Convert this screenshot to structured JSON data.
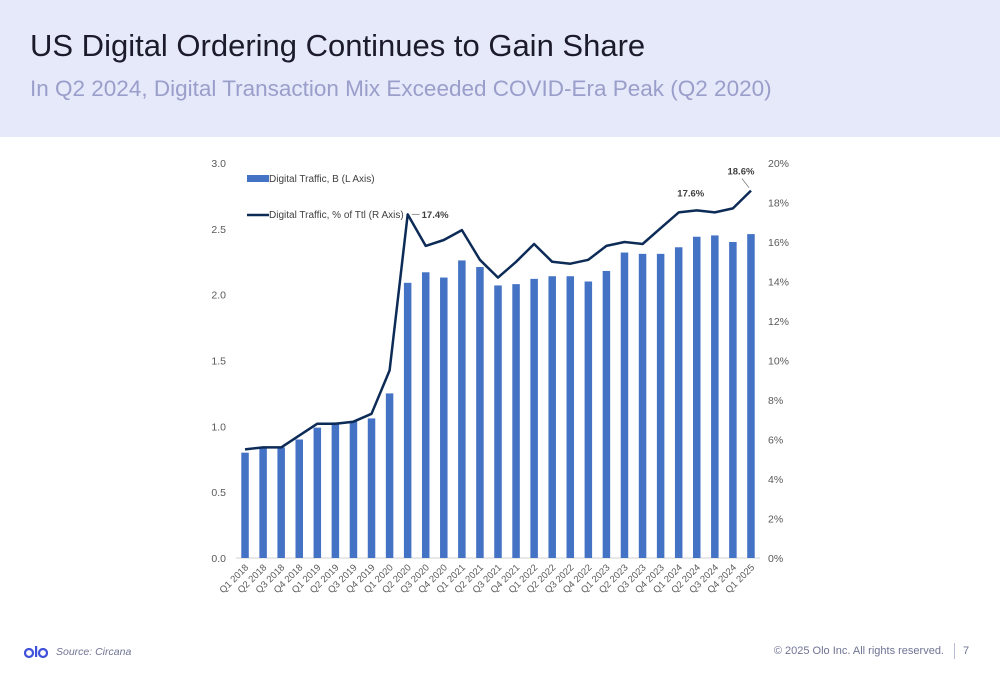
{
  "header": {
    "title": "US Digital Ordering Continues to Gain Share",
    "subtitle": "In Q2 2024, Digital Transaction Mix Exceeded COVID-Era Peak (Q2 2020)"
  },
  "footer": {
    "logo_icon": "olo-logo-icon",
    "source": "Source: Circana",
    "copyright": "© 2025 Olo Inc. All rights reserved.",
    "page_number": "7"
  },
  "colors": {
    "header_band": "#e6e9fa",
    "bar": "#4472c4",
    "line": "#0d2b57",
    "logo": "#3f51d9"
  },
  "chart_data": {
    "type": "bar",
    "categories": [
      "Q1 2018",
      "Q2 2018",
      "Q3 2018",
      "Q4 2018",
      "Q1 2019",
      "Q2 2019",
      "Q3 2019",
      "Q4 2019",
      "Q1 2020",
      "Q2 2020",
      "Q3 2020",
      "Q4 2020",
      "Q1 2021",
      "Q2 2021",
      "Q3 2021",
      "Q4 2021",
      "Q1 2022",
      "Q2 2022",
      "Q3 2022",
      "Q4 2022",
      "Q1 2023",
      "Q2 2023",
      "Q3 2023",
      "Q4 2023",
      "Q1 2024",
      "Q2 2024",
      "Q3 2024",
      "Q4 2024",
      "Q1 2025"
    ],
    "series": [
      {
        "name": "Digital Traffic, B (L Axis)",
        "type": "bar",
        "axis": "left",
        "values": [
          0.8,
          0.84,
          0.84,
          0.9,
          0.99,
          1.03,
          1.04,
          1.06,
          1.25,
          2.09,
          2.17,
          2.13,
          2.26,
          2.21,
          2.07,
          2.08,
          2.12,
          2.14,
          2.14,
          2.1,
          2.18,
          2.32,
          2.31,
          2.31,
          2.36,
          2.44,
          2.45,
          2.4,
          2.46
        ]
      },
      {
        "name": "Digital Traffic, % of Ttl (R Axis)",
        "type": "line",
        "axis": "right",
        "values": [
          5.5,
          5.6,
          5.6,
          6.2,
          6.8,
          6.8,
          6.9,
          7.3,
          9.5,
          17.4,
          15.8,
          16.1,
          16.6,
          15.1,
          14.2,
          15.0,
          15.9,
          15.0,
          14.9,
          15.1,
          15.8,
          16.0,
          15.9,
          16.7,
          17.5,
          17.6,
          17.5,
          17.7,
          18.6
        ]
      }
    ],
    "data_labels": [
      {
        "category": "Q2 2020",
        "text": "17.4%"
      },
      {
        "category": "Q2 2024",
        "text": "17.6%"
      },
      {
        "category": "Q1 2025",
        "text": "18.6%"
      }
    ],
    "y_left": {
      "min": 0,
      "max": 3.0,
      "ticks": [
        "0.0",
        "0.5",
        "1.0",
        "1.5",
        "2.0",
        "2.5",
        "3.0"
      ]
    },
    "y_right": {
      "min": 0,
      "max": 20,
      "ticks": [
        "0%",
        "2%",
        "4%",
        "6%",
        "8%",
        "10%",
        "12%",
        "14%",
        "16%",
        "18%",
        "20%"
      ]
    },
    "grid": false,
    "legend": "top-left"
  }
}
